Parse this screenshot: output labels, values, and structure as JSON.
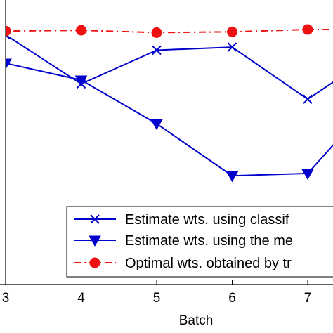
{
  "chart_data": {
    "type": "line",
    "xlabel": "Batch",
    "ylabel": "",
    "x_ticks": [
      3,
      4,
      5,
      6,
      7
    ],
    "series": [
      {
        "name": "Estimate wts. using classif",
        "color": "#0000cc",
        "marker": "x",
        "line_style": "solid",
        "x": [
          2.9,
          3,
          4,
          5,
          6,
          7,
          7.5
        ],
        "y": [
          0.918,
          0.926,
          0.862,
          0.906,
          0.91,
          0.842,
          0.875
        ]
      },
      {
        "name": "Estimate wts. using the me",
        "color": "#0000cc",
        "marker": "triangle-down",
        "line_style": "solid",
        "x": [
          2.9,
          3,
          4,
          5,
          6,
          7,
          7.5
        ],
        "y": [
          0.85,
          0.889,
          0.867,
          0.81,
          0.742,
          0.745,
          0.8
        ]
      },
      {
        "name": "Optimal wts. obtained by tr",
        "color": "#ee1111",
        "marker": "circle",
        "line_style": "dashdot",
        "x": [
          2.9,
          3,
          4,
          5,
          6,
          7,
          7.5
        ],
        "y": [
          0.93,
          0.931,
          0.932,
          0.929,
          0.93,
          0.933,
          0.933
        ]
      }
    ],
    "legend_position": "bottom-right",
    "grid": false
  }
}
